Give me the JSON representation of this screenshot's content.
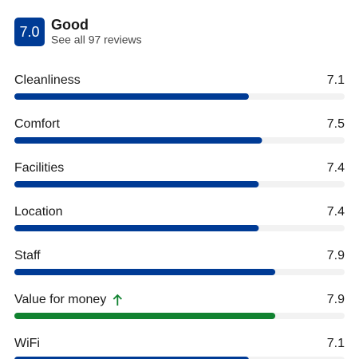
{
  "header": {
    "rating": {
      "value": 7.0,
      "label": "7.0"
    },
    "verdict": "Good",
    "reviews_link": "See all 97 reviews",
    "color": "#003b95"
  },
  "scale_max": 10,
  "categories": [
    {
      "name": "Cleanliness",
      "score": 7.1,
      "color": "#003b95"
    },
    {
      "name": "Comfort",
      "score": 7.5,
      "color": "#003b95"
    },
    {
      "name": "Facilities",
      "score": 7.4,
      "color": "#003b95"
    },
    {
      "name": "Location",
      "score": 7.4,
      "color": "#003b95"
    },
    {
      "name": "Staff",
      "score": 7.9,
      "color": "#003b95"
    },
    {
      "name": "Value for money",
      "score": 7.9,
      "color": "#118230",
      "trend_up": true
    },
    {
      "name": "WiFi",
      "score": 7.1,
      "color": "#003b95"
    }
  ]
}
